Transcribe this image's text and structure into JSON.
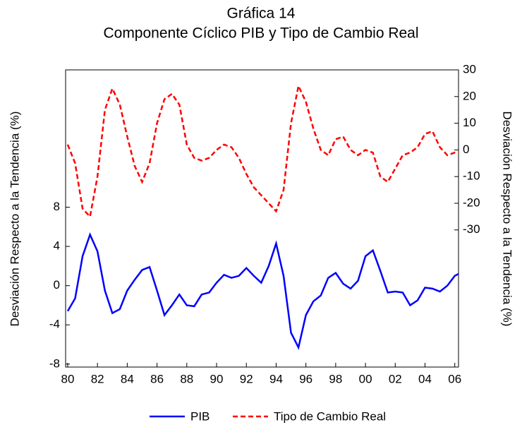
{
  "chart_data": {
    "type": "line",
    "title": "Gráfica 14",
    "subtitle": "Componente Cíclico PIB y Tipo de Cambio Real",
    "y_label": "Desviación Respecto a la Tendencia (%)",
    "y2_label": "Desviación Respecto a la Tendencia (%)",
    "x": [
      1980,
      1980.5,
      1981,
      1981.5,
      1982,
      1982.5,
      1983,
      1983.5,
      1984,
      1984.5,
      1985,
      1985.5,
      1986,
      1986.5,
      1987,
      1987.5,
      1988,
      1988.5,
      1989,
      1989.5,
      1990,
      1990.5,
      1991,
      1991.5,
      1992,
      1992.5,
      1993,
      1993.5,
      1994,
      1994.5,
      1995,
      1995.5,
      1996,
      1996.5,
      1997,
      1997.5,
      1998,
      1998.5,
      1999,
      1999.5,
      2000,
      2000.5,
      2001,
      2001.5,
      2002,
      2002.5,
      2003,
      2003.5,
      2004,
      2004.5,
      2005,
      2005.5,
      2006,
      2006.25
    ],
    "series": [
      {
        "name": "PIB",
        "color": "#0000ff",
        "dash": false,
        "values": [
          -2.6,
          -1.3,
          3.0,
          5.2,
          3.5,
          -0.5,
          -2.8,
          -2.4,
          -0.5,
          0.6,
          1.6,
          1.9,
          -0.5,
          -3.0,
          -2.0,
          -0.9,
          -2.0,
          -2.1,
          -0.9,
          -0.7,
          0.3,
          1.1,
          0.8,
          1.0,
          1.8,
          1.0,
          0.3,
          2.0,
          4.3,
          1.0,
          -4.8,
          -6.3,
          -3.0,
          -1.6,
          -1.0,
          0.8,
          1.3,
          0.2,
          -0.3,
          0.5,
          3.0,
          3.6,
          1.5,
          -0.7,
          -0.6,
          -0.7,
          -2.0,
          -1.5,
          -0.2,
          -0.3,
          -0.6,
          0.0,
          1.0,
          1.2
        ]
      },
      {
        "name": "Tipo de Cambio Real",
        "color": "#ff0000",
        "dash": true,
        "axis": "y2",
        "values": [
          2,
          -5,
          -22,
          -25,
          -10,
          15,
          23,
          17,
          5,
          -6,
          -12,
          -5,
          10,
          19,
          21,
          17,
          2,
          -3,
          -4,
          -3,
          0,
          2,
          1,
          -3,
          -9,
          -14,
          -17,
          -20,
          -23,
          -15,
          10,
          24,
          18,
          8,
          0,
          -2,
          4,
          5,
          0,
          -2,
          0,
          -1,
          -10,
          -12,
          -7,
          -2,
          -1,
          1,
          6,
          7,
          1,
          -2,
          -1,
          -1
        ]
      }
    ],
    "xlim": [
      1979.86,
      2006.25
    ],
    "xticks": [
      {
        "value": 1980,
        "label": "80"
      },
      {
        "value": 1982,
        "label": "82"
      },
      {
        "value": 1984,
        "label": "84"
      },
      {
        "value": 1986,
        "label": "86"
      },
      {
        "value": 1988,
        "label": "88"
      },
      {
        "value": 1990,
        "label": "90"
      },
      {
        "value": 1992,
        "label": "92"
      },
      {
        "value": 1994,
        "label": "94"
      },
      {
        "value": 1996,
        "label": "96"
      },
      {
        "value": 1998,
        "label": "98"
      },
      {
        "value": 2000,
        "label": "00"
      },
      {
        "value": 2002,
        "label": "02"
      },
      {
        "value": 2004,
        "label": "04"
      },
      {
        "value": 2006,
        "label": "06"
      }
    ],
    "ylim": [
      -8.3,
      22
    ],
    "yticks": [
      -8,
      -4,
      0,
      4,
      8
    ],
    "y2lim": [
      -81.4,
      30
    ],
    "y2ticks": [
      -30,
      -20,
      -10,
      0,
      10,
      20,
      30
    ]
  }
}
